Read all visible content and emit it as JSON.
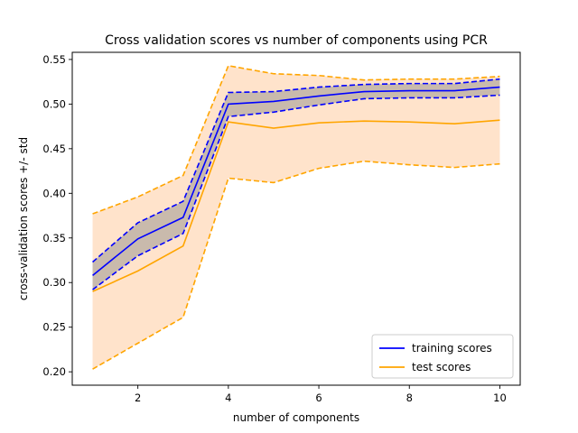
{
  "chart_data": {
    "type": "line",
    "title": "Cross validation scores vs number of components using PCR",
    "xlabel": "number of components",
    "ylabel": "cross-validation scores +/- std",
    "xlim": [
      0.55,
      10.45
    ],
    "ylim": [
      0.185,
      0.558
    ],
    "xticks": [
      2,
      4,
      6,
      8,
      10
    ],
    "yticks": [
      0.2,
      0.25,
      0.3,
      0.35,
      0.4,
      0.45,
      0.5,
      0.55
    ],
    "xtick_labels": [
      "2",
      "4",
      "6",
      "8",
      "10"
    ],
    "ytick_labels": [
      "0.20",
      "0.25",
      "0.30",
      "0.35",
      "0.40",
      "0.45",
      "0.50",
      "0.55"
    ],
    "grid": false,
    "legend_position": "lower-right",
    "x": [
      1,
      2,
      3,
      4,
      5,
      6,
      7,
      8,
      9,
      10
    ],
    "series": [
      {
        "name": "training scores",
        "color": "#0000ff",
        "band_color": "#888888",
        "mean": [
          0.308,
          0.349,
          0.373,
          0.5,
          0.503,
          0.509,
          0.514,
          0.515,
          0.515,
          0.519
        ],
        "upper": [
          0.323,
          0.367,
          0.391,
          0.513,
          0.514,
          0.519,
          0.522,
          0.523,
          0.523,
          0.528
        ],
        "lower": [
          0.292,
          0.33,
          0.355,
          0.486,
          0.491,
          0.499,
          0.506,
          0.507,
          0.507,
          0.51
        ]
      },
      {
        "name": "test scores",
        "color": "#ffa500",
        "band_color": "#ffdab9",
        "mean": [
          0.29,
          0.313,
          0.341,
          0.48,
          0.473,
          0.479,
          0.481,
          0.48,
          0.478,
          0.482
        ],
        "upper": [
          0.377,
          0.396,
          0.42,
          0.543,
          0.534,
          0.532,
          0.527,
          0.528,
          0.528,
          0.531
        ],
        "lower": [
          0.203,
          0.232,
          0.261,
          0.417,
          0.412,
          0.428,
          0.436,
          0.432,
          0.429,
          0.433
        ]
      }
    ]
  }
}
